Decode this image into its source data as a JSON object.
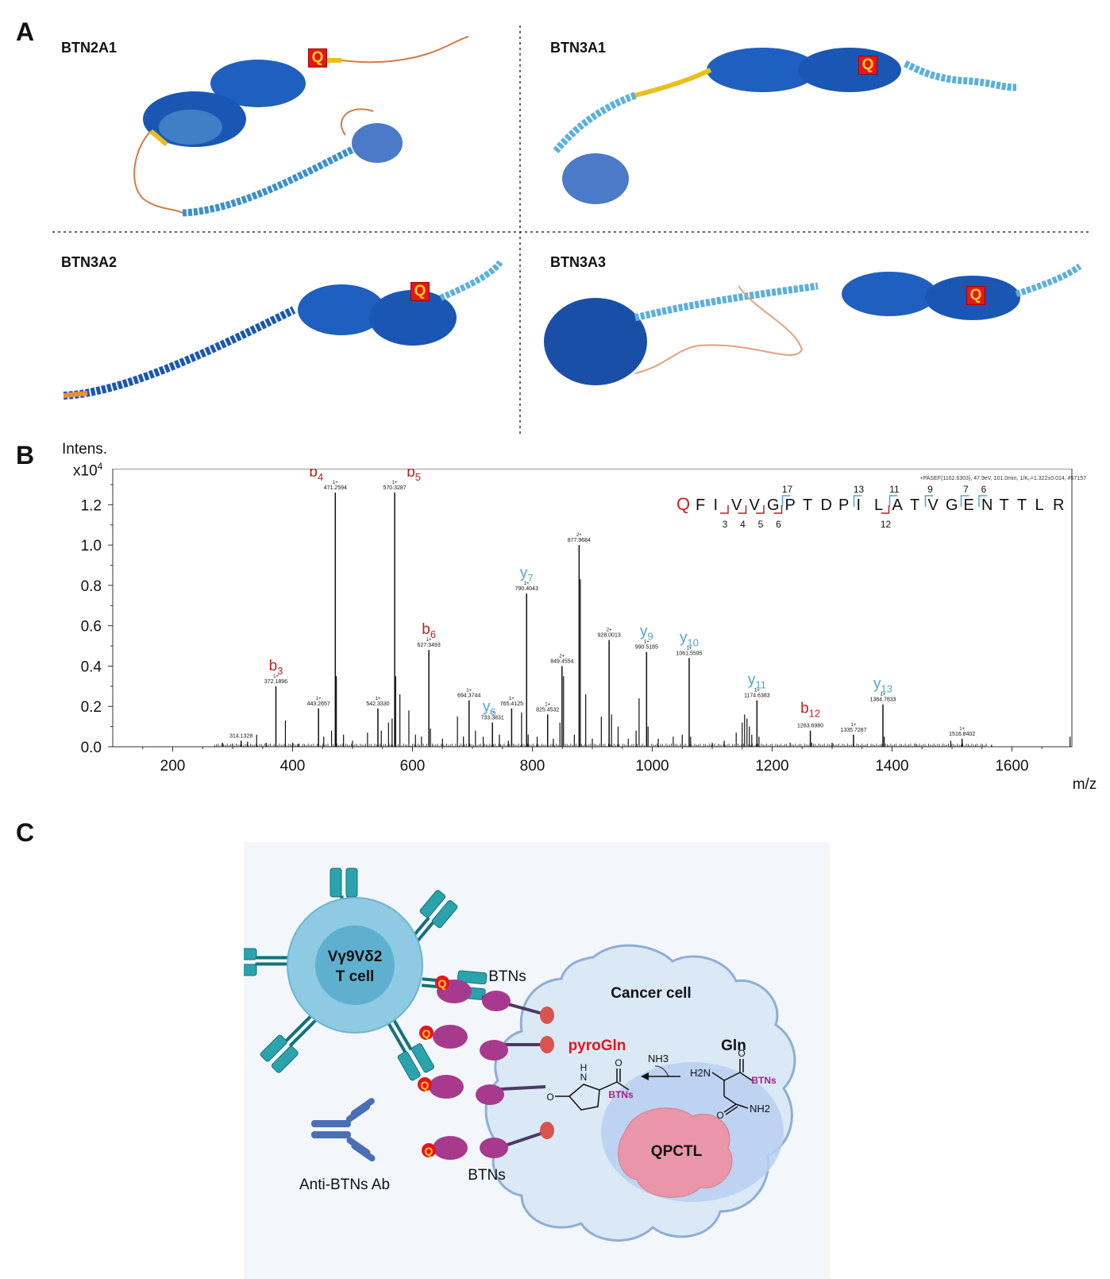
{
  "panel_a": {
    "letter": "A",
    "proteins": [
      {
        "name": "BTN2A1",
        "q_label": "Q"
      },
      {
        "name": "BTN3A1",
        "q_label": "Q"
      },
      {
        "name": "BTN3A2",
        "q_label": "Q"
      },
      {
        "name": "BTN3A3",
        "q_label": "Q"
      }
    ]
  },
  "panel_b": {
    "letter": "B",
    "y_title": "Intens.",
    "y_scale": "x10",
    "y_scale_exp": "4",
    "x_unit": "m/z",
    "header_note": "+PASEF(1162.6303), 47.9eV, 101.0min, 1/K₀=1.322±0.014, #57157",
    "peptide_q": "Q",
    "peptide_rest": [
      "F",
      "I",
      "V",
      "V",
      "G",
      "P",
      "T",
      "D",
      "P",
      "I",
      "L",
      "A",
      "T",
      "V",
      "G",
      "E",
      "N",
      "T",
      "T",
      "L",
      "R"
    ],
    "b_ion_numbers": [
      {
        "after_residue": 2,
        "label": "3"
      },
      {
        "after_residue": 3,
        "label": "4"
      },
      {
        "after_residue": 4,
        "label": "5"
      },
      {
        "after_residue": 5,
        "label": "6"
      },
      {
        "after_residue": 11,
        "label": "12"
      }
    ],
    "y_ion_numbers": [
      {
        "after_residue": 5,
        "label": "17"
      },
      {
        "after_residue": 9,
        "label": "13"
      },
      {
        "after_residue": 11,
        "label": "11"
      },
      {
        "after_residue": 13,
        "label": "9"
      },
      {
        "after_residue": 15,
        "label": "7"
      },
      {
        "after_residue": 16,
        "label": "6"
      }
    ]
  },
  "chart_data": {
    "type": "bar",
    "title": "",
    "xlabel": "m/z",
    "ylabel": "Intens. x10^4",
    "xlim": [
      100,
      1700
    ],
    "ylim": [
      0,
      1.3
    ],
    "x_ticks": [
      "200",
      "400",
      "600",
      "800",
      "1000",
      "1200",
      "1400",
      "1600"
    ],
    "y_ticks": [
      "0.0",
      "0.2",
      "0.4",
      "0.6",
      "0.8",
      "1.0",
      "1.2"
    ],
    "labeled_peaks": [
      {
        "mz": 314.1328,
        "intensity": 0.03,
        "charge": "",
        "mass": "314.1328",
        "ion": "",
        "color": "#000000"
      },
      {
        "mz": 372.1896,
        "intensity": 0.3,
        "charge": "1+",
        "mass": "372.1896",
        "ion": "b",
        "ion_sub": "3",
        "color": "#c0201e"
      },
      {
        "mz": 443.2657,
        "intensity": 0.19,
        "charge": "1+",
        "mass": "443.2657",
        "ion": "",
        "color": "#000000"
      },
      {
        "mz": 471.2594,
        "intensity": 1.26,
        "charge": "1+",
        "mass": "471.2594",
        "ion": "b",
        "ion_sub": "4",
        "color": "#c0201e"
      },
      {
        "mz": 542.333,
        "intensity": 0.19,
        "charge": "1+",
        "mass": "542.3330",
        "ion": "",
        "color": "#000000"
      },
      {
        "mz": 570.3287,
        "intensity": 1.26,
        "charge": "1+",
        "mass": "570.3287",
        "ion": "b",
        "ion_sub": "5",
        "color": "#c0201e"
      },
      {
        "mz": 627.3493,
        "intensity": 0.48,
        "charge": "1+",
        "mass": "627.3493",
        "ion": "b",
        "ion_sub": "6",
        "color": "#c0201e"
      },
      {
        "mz": 694.3744,
        "intensity": 0.23,
        "charge": "1+",
        "mass": "694.3744",
        "ion": "",
        "color": "#000000"
      },
      {
        "mz": 733.3831,
        "intensity": 0.12,
        "charge": "1+",
        "mass": "733.3831",
        "ion": "y",
        "ion_sub": "6",
        "color": "#4aa6d6"
      },
      {
        "mz": 765.4125,
        "intensity": 0.19,
        "charge": "1+",
        "mass": "765.4125",
        "ion": "",
        "color": "#000000"
      },
      {
        "mz": 790.4043,
        "intensity": 0.76,
        "charge": "1+",
        "mass": "790.4043",
        "ion": "y",
        "ion_sub": "7",
        "color": "#4aa6d6"
      },
      {
        "mz": 825.4532,
        "intensity": 0.16,
        "charge": "1+",
        "mass": "825.4532",
        "ion": "",
        "color": "#000000"
      },
      {
        "mz": 849.4554,
        "intensity": 0.4,
        "charge": "2+",
        "mass": "849.4554",
        "ion": "",
        "color": "#000000"
      },
      {
        "mz": 877.9684,
        "intensity": 1.0,
        "charge": "2+",
        "mass": "877.9684",
        "ion": "",
        "color": "#000000"
      },
      {
        "mz": 928.0013,
        "intensity": 0.53,
        "charge": "2+",
        "mass": "928.0013",
        "ion": "",
        "color": "#000000"
      },
      {
        "mz": 990.5185,
        "intensity": 0.47,
        "charge": "1+",
        "mass": "990.5185",
        "ion": "y",
        "ion_sub": "9",
        "color": "#4aa6d6"
      },
      {
        "mz": 1061.5595,
        "intensity": 0.44,
        "charge": "1+",
        "mass": "1061.5595",
        "ion": "y",
        "ion_sub": "10",
        "color": "#4aa6d6"
      },
      {
        "mz": 1174.6383,
        "intensity": 0.23,
        "charge": "1+",
        "mass": "1174.6383",
        "ion": "y",
        "ion_sub": "11",
        "color": "#4aa6d6"
      },
      {
        "mz": 1263.698,
        "intensity": 0.08,
        "charge": "",
        "mass": "1263.6980",
        "ion": "b",
        "ion_sub": "12",
        "color": "#c0201e"
      },
      {
        "mz": 1335.7287,
        "intensity": 0.06,
        "charge": "1+",
        "mass": "1335.7287",
        "ion": "",
        "color": "#000000"
      },
      {
        "mz": 1384.7833,
        "intensity": 0.21,
        "charge": "1+",
        "mass": "1384.7833",
        "ion": "y",
        "ion_sub": "13",
        "color": "#4aa6d6"
      },
      {
        "mz": 1516.8402,
        "intensity": 0.04,
        "charge": "1+",
        "mass": "1516.8402",
        "ion": "",
        "color": "#000000"
      }
    ],
    "minor_peaks": [
      [
        283,
        0.02
      ],
      [
        300,
        0.015
      ],
      [
        325,
        0.025
      ],
      [
        340,
        0.06
      ],
      [
        356,
        0.02
      ],
      [
        388,
        0.13
      ],
      [
        400,
        0.02
      ],
      [
        410,
        0.015
      ],
      [
        452,
        0.05
      ],
      [
        465,
        0.08
      ],
      [
        473,
        0.35
      ],
      [
        485,
        0.06
      ],
      [
        500,
        0.03
      ],
      [
        525,
        0.07
      ],
      [
        548,
        0.08
      ],
      [
        560,
        0.12
      ],
      [
        566,
        0.14
      ],
      [
        572,
        0.35
      ],
      [
        579,
        0.26
      ],
      [
        594,
        0.18
      ],
      [
        605,
        0.06
      ],
      [
        615,
        0.05
      ],
      [
        630,
        0.09
      ],
      [
        650,
        0.04
      ],
      [
        675,
        0.15
      ],
      [
        685,
        0.05
      ],
      [
        705,
        0.08
      ],
      [
        718,
        0.05
      ],
      [
        745,
        0.06
      ],
      [
        760,
        0.03
      ],
      [
        782,
        0.17
      ],
      [
        793,
        0.06
      ],
      [
        808,
        0.05
      ],
      [
        835,
        0.04
      ],
      [
        846,
        0.12
      ],
      [
        852,
        0.35
      ],
      [
        870,
        0.06
      ],
      [
        880,
        0.83
      ],
      [
        889,
        0.26
      ],
      [
        900,
        0.04
      ],
      [
        915,
        0.15
      ],
      [
        932,
        0.16
      ],
      [
        943,
        0.1
      ],
      [
        960,
        0.04
      ],
      [
        973,
        0.08
      ],
      [
        978,
        0.24
      ],
      [
        993,
        0.1
      ],
      [
        1010,
        0.04
      ],
      [
        1035,
        0.05
      ],
      [
        1050,
        0.06
      ],
      [
        1064,
        0.05
      ],
      [
        1100,
        0.02
      ],
      [
        1120,
        0.03
      ],
      [
        1140,
        0.07
      ],
      [
        1150,
        0.12
      ],
      [
        1154,
        0.16
      ],
      [
        1158,
        0.14
      ],
      [
        1162,
        0.1
      ],
      [
        1166,
        0.06
      ],
      [
        1178,
        0.05
      ],
      [
        1230,
        0.02
      ],
      [
        1266,
        0.02
      ],
      [
        1300,
        0.02
      ],
      [
        1387,
        0.05
      ],
      [
        1440,
        0.015
      ],
      [
        1498,
        0.03
      ],
      [
        1566,
        0.01
      ],
      [
        1697,
        0.05
      ]
    ]
  },
  "panel_c": {
    "letter": "C",
    "t_cell_line1": "Vγ9Vδ2",
    "t_cell_line2": "T cell",
    "btns_top": "BTNs",
    "btns_bottom": "BTNs",
    "cancer_cell": "Cancer cell",
    "pyroGln": "pyroGln",
    "gln": "Gln",
    "nh3": "NH3",
    "h2n": "H2N",
    "nh2": "NH2",
    "btns_chem_left": "BTNs",
    "btns_chem_right": "BTNs",
    "h_label": "H",
    "n_label": "N",
    "o_label": "O",
    "qpctl": "QPCTL",
    "antibody_label": "Anti-BTNs Ab",
    "q_label": "Q"
  }
}
